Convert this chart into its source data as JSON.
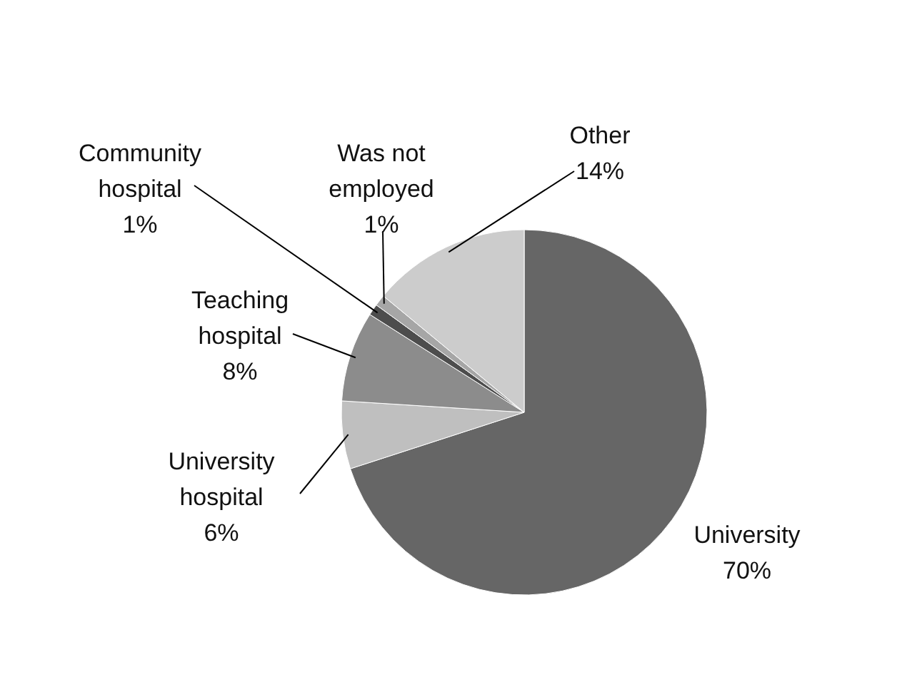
{
  "chart_data": {
    "type": "pie",
    "categories": [
      "University",
      "University hospital",
      "Teaching hospital",
      "Community hospital",
      "Was not employed",
      "Other"
    ],
    "values": [
      70,
      6,
      8,
      1,
      1,
      14
    ],
    "value_labels": [
      "70%",
      "6%",
      "8%",
      "1%",
      "1%",
      "14%"
    ],
    "colors": [
      "#666666",
      "#bfbfbf",
      "#8c8c8c",
      "#4d4d4d",
      "#a6a6a6",
      "#cccccc"
    ]
  }
}
